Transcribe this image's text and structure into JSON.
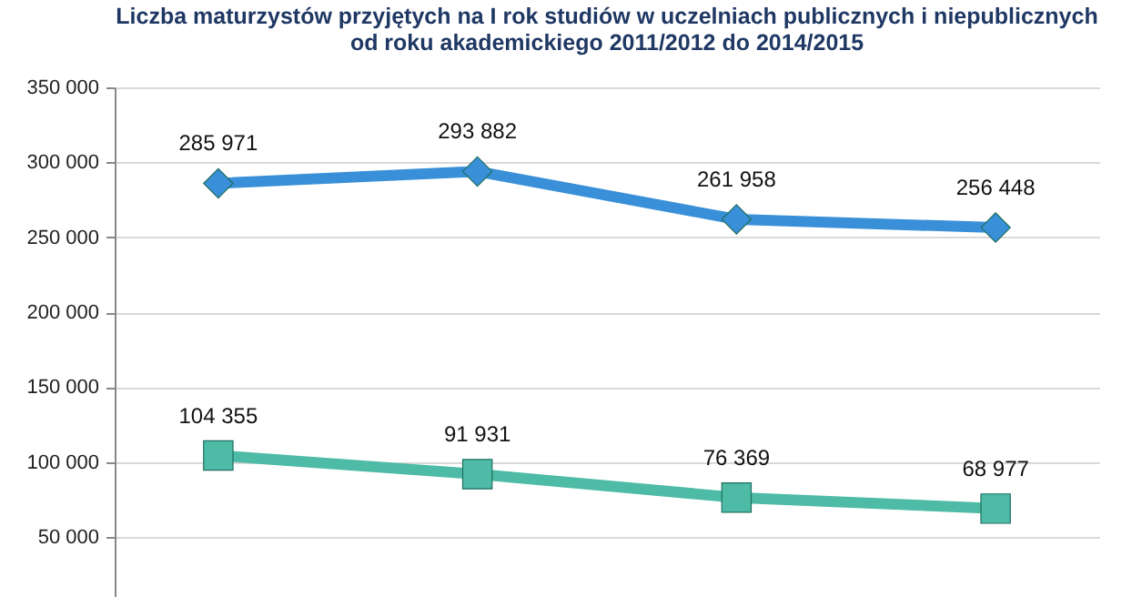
{
  "chart_data": {
    "type": "line",
    "title": [
      "Liczba maturzystów przyjętych na I rok studiów w uczelniach publicznych i niepublicznych",
      "od roku akademickiego 2011/2012 do 2014/2015"
    ],
    "categories": [
      null,
      null,
      null,
      null
    ],
    "series": [
      {
        "color": "#3a90d8",
        "marker": "diamond",
        "values": [
          285971,
          293882,
          261958,
          256448
        ],
        "value_labels": [
          "285 971",
          "293 882",
          "261 958",
          "256 448"
        ]
      },
      {
        "color": "#4dbba5",
        "marker": "square",
        "values": [
          104355,
          91931,
          76369,
          68977
        ],
        "value_labels": [
          "104 355",
          "91 931",
          "76 369",
          "68 977"
        ]
      }
    ],
    "ylim": [
      10000,
      350000
    ],
    "yticks": [
      {
        "value": 50000,
        "label": "50 000"
      },
      {
        "value": 100000,
        "label": "100 000"
      },
      {
        "value": 150000,
        "label": "150 000"
      },
      {
        "value": 200000,
        "label": "200 000"
      },
      {
        "value": 250000,
        "label": "250 000"
      },
      {
        "value": 300000,
        "label": "300 000"
      },
      {
        "value": 350000,
        "label": "350 000"
      }
    ],
    "grid": "y",
    "tick_labels": "y",
    "line_style": "solid"
  }
}
